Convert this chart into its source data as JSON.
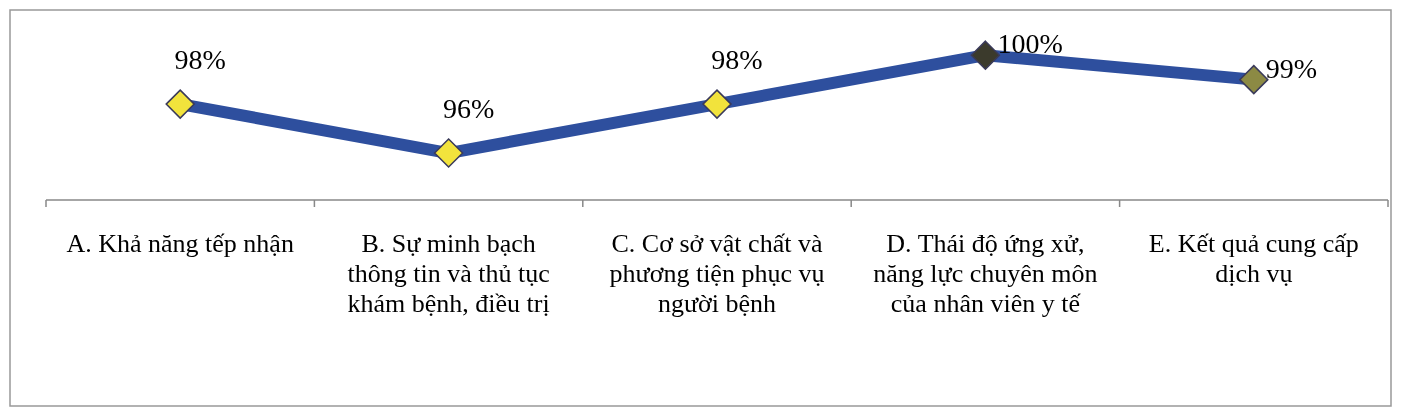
{
  "chart_data": {
    "type": "line",
    "categories": [
      "A. Khả năng tếp nhận",
      "B. Sự minh bạch thông tin và thủ tục khám bệnh, điều trị",
      "C. Cơ sở vật chất và phương tiện phục vụ người bệnh",
      "D. Thái độ ứng xử, năng lực chuyên môn của nhân viên y tế",
      "E. Kết quả cung cấp dịch vụ"
    ],
    "series": [
      {
        "color": "#2e4f9e",
        "values": [
          98,
          96,
          98,
          100,
          99
        ],
        "colors": [
          "#f2e33c",
          "#f2e33c",
          "#f2e33c",
          "#3b3a2c",
          "#8c8a44"
        ],
        "value_labels": [
          "98%",
          "96%",
          "98%",
          "100%",
          "99%"
        ]
      }
    ],
    "marker": "diamond",
    "line_style": "solid"
  }
}
